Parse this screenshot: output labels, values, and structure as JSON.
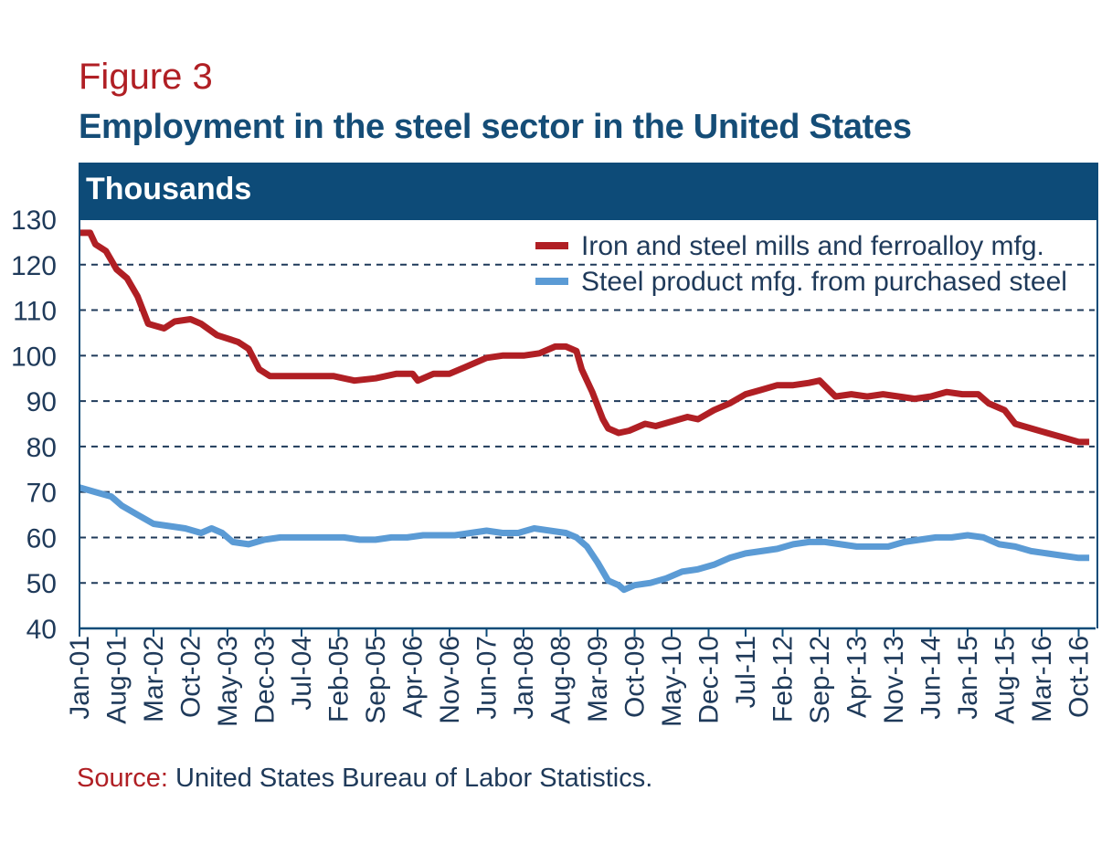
{
  "figure_label": "Figure 3",
  "title": "Employment in the steel sector in the United States",
  "units_label": "Thousands",
  "source": {
    "label": "Source:",
    "text": "United States Bureau of Labor Statistics."
  },
  "colors": {
    "title": "#154d77",
    "label_red": "#b01f24",
    "header_bar": "#0d4b78",
    "series_red": "#b01f24",
    "series_blue": "#5b9bd5",
    "grid": "#1f3a5a"
  },
  "chart_data": {
    "type": "line",
    "title": "Employment in the steel sector in the United States",
    "ylabel": "Thousands",
    "xlabel": "",
    "ylim": [
      40,
      130
    ],
    "yticks": [
      40,
      50,
      60,
      70,
      80,
      90,
      100,
      110,
      120,
      130
    ],
    "grid": "horizontal dashed",
    "legend_position": "top-right",
    "x_start": "Jan-01",
    "x_end": "Dec-16",
    "x_tick_labels": [
      "Jan-01",
      "Aug-01",
      "Mar-02",
      "Oct-02",
      "May-03",
      "Dec-03",
      "Jul-04",
      "Feb-05",
      "Sep-05",
      "Apr-06",
      "Nov-06",
      "Jun-07",
      "Jan-08",
      "Aug-08",
      "Mar-09",
      "Oct-09",
      "May-10",
      "Dec-10",
      "Jul-11",
      "Feb-12",
      "Sep-12",
      "Apr-13",
      "Nov-13",
      "Jun-14",
      "Jan-15",
      "Aug-15",
      "Mar-16",
      "Oct-16"
    ],
    "series": [
      {
        "name": "Iron and steel mills and ferroalloy mfg.",
        "color": "#b01f24",
        "points": [
          [
            "Jan-01",
            127
          ],
          [
            "Mar-01",
            127
          ],
          [
            "Apr-01",
            124.5
          ],
          [
            "Jun-01",
            123
          ],
          [
            "Aug-01",
            119
          ],
          [
            "Oct-01",
            117
          ],
          [
            "Dec-01",
            113
          ],
          [
            "Feb-02",
            107
          ],
          [
            "May-02",
            106
          ],
          [
            "Jul-02",
            107.5
          ],
          [
            "Oct-02",
            108
          ],
          [
            "Dec-02",
            107
          ],
          [
            "Mar-03",
            104.5
          ],
          [
            "Jul-03",
            103
          ],
          [
            "Sep-03",
            101.5
          ],
          [
            "Nov-03",
            97
          ],
          [
            "Jan-04",
            95.5
          ],
          [
            "Mar-04",
            95.5
          ],
          [
            "Jun-04",
            95.5
          ],
          [
            "Oct-04",
            95.5
          ],
          [
            "Jan-05",
            95.5
          ],
          [
            "May-05",
            94.5
          ],
          [
            "Sep-05",
            95
          ],
          [
            "Jan-06",
            96
          ],
          [
            "Apr-06",
            96
          ],
          [
            "May-06",
            94.5
          ],
          [
            "Aug-06",
            96
          ],
          [
            "Nov-06",
            96
          ],
          [
            "Feb-07",
            97.5
          ],
          [
            "Jun-07",
            99.5
          ],
          [
            "Sep-07",
            100
          ],
          [
            "Jan-08",
            100
          ],
          [
            "Apr-08",
            100.5
          ],
          [
            "Jul-08",
            102
          ],
          [
            "Sep-08",
            102
          ],
          [
            "Nov-08",
            101
          ],
          [
            "Dec-08",
            97
          ],
          [
            "Feb-09",
            92
          ],
          [
            "Apr-09",
            86
          ],
          [
            "May-09",
            84
          ],
          [
            "Jul-09",
            83
          ],
          [
            "Sep-09",
            83.5
          ],
          [
            "Dec-09",
            85
          ],
          [
            "Feb-10",
            84.5
          ],
          [
            "May-10",
            85.5
          ],
          [
            "Aug-10",
            86.5
          ],
          [
            "Oct-10",
            86
          ],
          [
            "Jan-11",
            88
          ],
          [
            "Apr-11",
            89.5
          ],
          [
            "Jul-11",
            91.5
          ],
          [
            "Oct-11",
            92.5
          ],
          [
            "Jan-12",
            93.5
          ],
          [
            "Apr-12",
            93.5
          ],
          [
            "Jul-12",
            94
          ],
          [
            "Sep-12",
            94.5
          ],
          [
            "Dec-12",
            91
          ],
          [
            "Mar-13",
            91.5
          ],
          [
            "Jun-13",
            91
          ],
          [
            "Sep-13",
            91.5
          ],
          [
            "Dec-13",
            91
          ],
          [
            "Mar-14",
            90.5
          ],
          [
            "Jun-14",
            91
          ],
          [
            "Sep-14",
            92
          ],
          [
            "Dec-14",
            91.5
          ],
          [
            "Mar-15",
            91.5
          ],
          [
            "May-15",
            89.5
          ],
          [
            "Aug-15",
            88
          ],
          [
            "Oct-15",
            85
          ],
          [
            "Jan-16",
            84
          ],
          [
            "Apr-16",
            83
          ],
          [
            "Jul-16",
            82
          ],
          [
            "Oct-16",
            81
          ],
          [
            "Dec-16",
            81
          ]
        ]
      },
      {
        "name": "Steel product mfg. from purchased steel",
        "color": "#5b9bd5",
        "points": [
          [
            "Jan-01",
            71
          ],
          [
            "Apr-01",
            70
          ],
          [
            "Jul-01",
            69
          ],
          [
            "Sep-01",
            67
          ],
          [
            "Dec-01",
            65
          ],
          [
            "Mar-02",
            63
          ],
          [
            "Jun-02",
            62.5
          ],
          [
            "Sep-02",
            62
          ],
          [
            "Dec-02",
            61
          ],
          [
            "Feb-03",
            62
          ],
          [
            "Apr-03",
            61
          ],
          [
            "Jun-03",
            59
          ],
          [
            "Sep-03",
            58.5
          ],
          [
            "Dec-03",
            59.5
          ],
          [
            "Mar-04",
            60
          ],
          [
            "Jun-04",
            60
          ],
          [
            "Sep-04",
            60
          ],
          [
            "Dec-04",
            60
          ],
          [
            "Mar-05",
            60
          ],
          [
            "Jun-05",
            59.5
          ],
          [
            "Sep-05",
            59.5
          ],
          [
            "Dec-05",
            60
          ],
          [
            "Mar-06",
            60
          ],
          [
            "Jun-06",
            60.5
          ],
          [
            "Sep-06",
            60.5
          ],
          [
            "Dec-06",
            60.5
          ],
          [
            "Mar-07",
            61
          ],
          [
            "Jun-07",
            61.5
          ],
          [
            "Sep-07",
            61
          ],
          [
            "Dec-07",
            61
          ],
          [
            "Mar-08",
            62
          ],
          [
            "Jun-08",
            61.5
          ],
          [
            "Sep-08",
            61
          ],
          [
            "Nov-08",
            60
          ],
          [
            "Jan-09",
            58
          ],
          [
            "Mar-09",
            54.5
          ],
          [
            "May-09",
            50.5
          ],
          [
            "Jul-09",
            49.5
          ],
          [
            "Aug-09",
            48.5
          ],
          [
            "Oct-09",
            49.5
          ],
          [
            "Jan-10",
            50
          ],
          [
            "Apr-10",
            51
          ],
          [
            "Jul-10",
            52.5
          ],
          [
            "Oct-10",
            53
          ],
          [
            "Jan-11",
            54
          ],
          [
            "Apr-11",
            55.5
          ],
          [
            "Jul-11",
            56.5
          ],
          [
            "Oct-11",
            57
          ],
          [
            "Jan-12",
            57.5
          ],
          [
            "Apr-12",
            58.5
          ],
          [
            "Jul-12",
            59
          ],
          [
            "Oct-12",
            59
          ],
          [
            "Jan-13",
            58.5
          ],
          [
            "Apr-13",
            58
          ],
          [
            "Jul-13",
            58
          ],
          [
            "Oct-13",
            58
          ],
          [
            "Jan-14",
            59
          ],
          [
            "Apr-14",
            59.5
          ],
          [
            "Jul-14",
            60
          ],
          [
            "Oct-14",
            60
          ],
          [
            "Jan-15",
            60.5
          ],
          [
            "Apr-15",
            60
          ],
          [
            "Jul-15",
            58.5
          ],
          [
            "Oct-15",
            58
          ],
          [
            "Jan-16",
            57
          ],
          [
            "Apr-16",
            56.5
          ],
          [
            "Jul-16",
            56
          ],
          [
            "Oct-16",
            55.5
          ],
          [
            "Dec-16",
            55.5
          ]
        ]
      }
    ]
  }
}
